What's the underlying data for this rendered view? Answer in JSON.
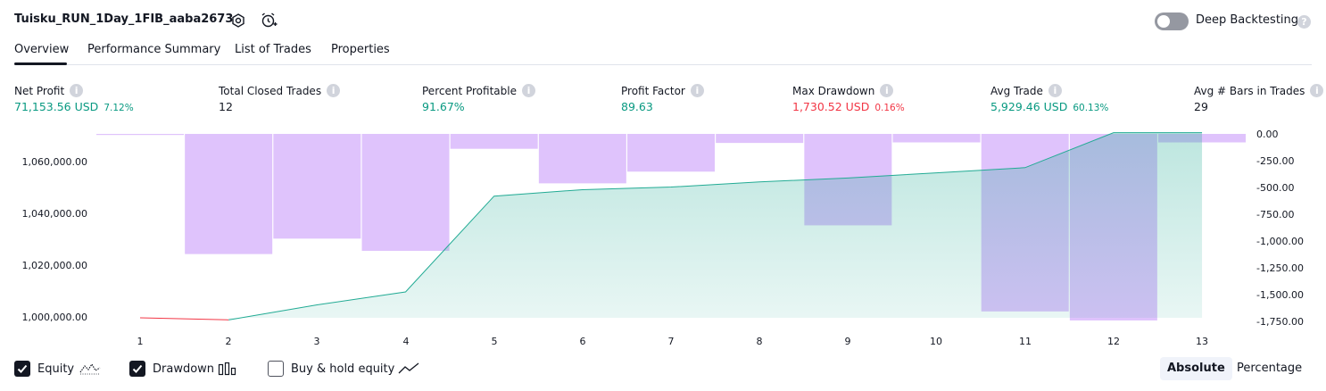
{
  "header": {
    "title": "Tuisku_RUN_1Day_1FIB_aaba2673",
    "deep_backtesting_label": "Deep Backtesting",
    "deep_backtesting_on": false
  },
  "tabs": [
    {
      "label": "Overview",
      "active": true
    },
    {
      "label": "Performance Summary",
      "active": false
    },
    {
      "label": "List of Trades",
      "active": false
    },
    {
      "label": "Properties",
      "active": false
    }
  ],
  "metrics": [
    {
      "label": "Net Profit",
      "value": "71,153.56 USD",
      "pct": "7.12%",
      "color": "#089981"
    },
    {
      "label": "Total Closed Trades",
      "value": "12",
      "pct": "",
      "color": "#131722"
    },
    {
      "label": "Percent Profitable",
      "value": "91.67%",
      "pct": "",
      "color": "#089981"
    },
    {
      "label": "Profit Factor",
      "value": "89.63",
      "pct": "",
      "color": "#089981"
    },
    {
      "label": "Max Drawdown",
      "value": "1,730.52 USD",
      "pct": "0.16%",
      "color": "#f23645"
    },
    {
      "label": "Avg Trade",
      "value": "5,929.46 USD",
      "pct": "60.13%",
      "color": "#089981"
    },
    {
      "label": "Avg # Bars in Trades",
      "value": "29",
      "pct": "",
      "color": "#131722"
    }
  ],
  "chart_data": {
    "type": "area",
    "x": [
      1,
      2,
      3,
      4,
      5,
      6,
      7,
      8,
      9,
      10,
      11,
      12,
      13
    ],
    "left_axis": {
      "ticks": [
        "1,060,000.00",
        "1,040,000.00",
        "1,020,000.00",
        "1,000,000.00"
      ],
      "ylim": [
        997000,
        1071000
      ]
    },
    "right_axis": {
      "ticks": [
        "0.00",
        "-250.00",
        "-500.00",
        "-750.00",
        "-1,000.00",
        "-1,250.00",
        "-1,500.00",
        "-1,750.00"
      ],
      "ylim": [
        -1755,
        0
      ]
    },
    "series": [
      {
        "name": "Equity",
        "color": "#22ab94",
        "values": [
          1000000,
          999200,
          1005000,
          1010000,
          1047000,
          1049500,
          1050500,
          1052500,
          1054000,
          1056000,
          1058000,
          1071500,
          1071500
        ]
      },
      {
        "name": "Drawdown",
        "color": "#d9b8fb",
        "values": [
          -10,
          -1130,
          -985,
          -1100,
          -140,
          -465,
          -355,
          -85,
          -860,
          -80,
          -1670,
          -1755,
          -80
        ]
      }
    ]
  },
  "legend": {
    "equity_label": "Equity",
    "equity_checked": true,
    "drawdown_label": "Drawdown",
    "drawdown_checked": true,
    "buyhold_label": "Buy & hold equity",
    "buyhold_checked": false
  },
  "view_toggle": {
    "absolute_label": "Absolute",
    "percentage_label": "Percentage",
    "selected": "Absolute"
  }
}
